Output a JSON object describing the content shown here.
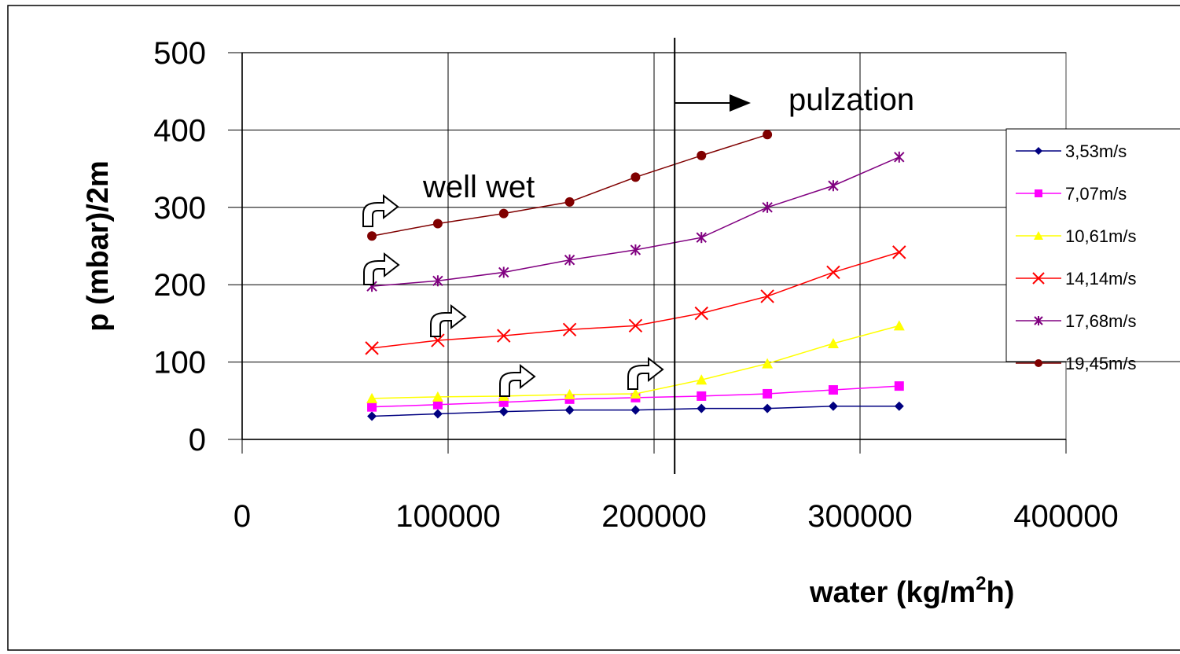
{
  "chart_data": {
    "type": "line",
    "title": "",
    "xlabel": "water (kg/m",
    "xlabel_sup": "2",
    "xlabel_tail": "h)",
    "ylabel": "p (mbar)/2m",
    "xlim": [
      0,
      400000
    ],
    "ylim": [
      0,
      500
    ],
    "xticks": [
      0,
      100000,
      200000,
      300000,
      400000
    ],
    "xtick_labels": [
      "0",
      "100000",
      "200000",
      "300000",
      "400000"
    ],
    "yticks": [
      0,
      100,
      200,
      300,
      400,
      500
    ],
    "ytick_labels": [
      "0",
      "100",
      "200",
      "300",
      "400",
      "500"
    ],
    "grid": true,
    "legend_position": "right",
    "series": [
      {
        "name": "3,53m/s",
        "color": "#000080",
        "marker": "diamond",
        "x": [
          63000,
          95000,
          127000,
          159000,
          191000,
          223000,
          255000,
          287000,
          319000
        ],
        "y": [
          30,
          33,
          36,
          38,
          38,
          40,
          40,
          43,
          43
        ]
      },
      {
        "name": "7,07m/s",
        "color": "#ff00ff",
        "marker": "square",
        "x": [
          63000,
          95000,
          127000,
          159000,
          191000,
          223000,
          255000,
          287000,
          319000
        ],
        "y": [
          42,
          45,
          48,
          52,
          54,
          56,
          59,
          64,
          69
        ]
      },
      {
        "name": "10,61m/s",
        "color": "#ffff00",
        "marker": "triangle",
        "x": [
          63000,
          95000,
          127000,
          159000,
          191000,
          223000,
          255000,
          287000,
          319000
        ],
        "y": [
          53,
          55,
          56,
          58,
          59,
          77,
          98,
          124,
          147
        ]
      },
      {
        "name": "14,14m/s",
        "color": "#ff0000",
        "marker": "x",
        "x": [
          63000,
          95000,
          127000,
          159000,
          191000,
          223000,
          255000,
          287000,
          319000
        ],
        "y": [
          118,
          128,
          134,
          142,
          147,
          163,
          185,
          216,
          242
        ]
      },
      {
        "name": "17,68m/s",
        "color": "#800080",
        "marker": "star",
        "x": [
          63000,
          95000,
          127000,
          159000,
          191000,
          223000,
          255000,
          287000,
          319000
        ],
        "y": [
          198,
          205,
          216,
          232,
          245,
          261,
          300,
          328,
          365
        ]
      },
      {
        "name": "19,45m/s",
        "color": "#800000",
        "marker": "circle",
        "x": [
          63000,
          95000,
          127000,
          159000,
          191000,
          223000,
          255000
        ],
        "y": [
          263,
          279,
          292,
          307,
          339,
          367,
          394
        ]
      }
    ],
    "annotations": {
      "well_wet": "well wet",
      "pulzation": "pulzation",
      "pulzation_line_x": 210000
    }
  }
}
